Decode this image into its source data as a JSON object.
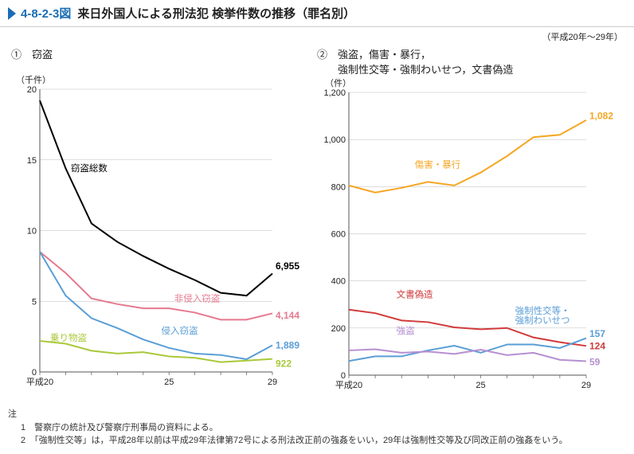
{
  "header": {
    "fig_num": "4-8-2-3図",
    "title": "来日外国人による刑法犯 検挙件数の推移（罪名別）",
    "range_note": "（平成20年～29年）"
  },
  "chart1": {
    "sub_label": "①　窃盗",
    "y_unit": "（千件）",
    "x_start_label": "平成20",
    "x_mid_label": "25",
    "x_end_label": "29",
    "y_ticks": [
      0,
      5,
      10,
      15,
      20
    ],
    "ylim": [
      0,
      20
    ],
    "xlim": [
      20,
      29
    ],
    "grid_color": "#bbbbbb",
    "axis_color": "#555555",
    "bg": "#ffffff",
    "series": [
      {
        "name": "total",
        "label": "窃盗総数",
        "label_x": 21.2,
        "label_y": 14.2,
        "color": "#000000",
        "end_label": "6,955",
        "end_y": 7.5,
        "data": [
          [
            20,
            19.2
          ],
          [
            21,
            14.4
          ],
          [
            22,
            10.5
          ],
          [
            23,
            9.2
          ],
          [
            24,
            8.2
          ],
          [
            25,
            7.3
          ],
          [
            26,
            6.5
          ],
          [
            27,
            5.6
          ],
          [
            28,
            5.4
          ],
          [
            29,
            6.955
          ]
        ]
      },
      {
        "name": "nonintr",
        "label": "非侵入窃盗",
        "label_x": 25.2,
        "label_y": 5.0,
        "color": "#e57a8f",
        "end_label": "4,144",
        "end_y": 4.0,
        "data": [
          [
            20,
            8.5
          ],
          [
            21,
            7.0
          ],
          [
            22,
            5.2
          ],
          [
            23,
            4.8
          ],
          [
            24,
            4.5
          ],
          [
            25,
            4.5
          ],
          [
            26,
            4.2
          ],
          [
            27,
            3.7
          ],
          [
            28,
            3.7
          ],
          [
            29,
            4.144
          ]
        ]
      },
      {
        "name": "intr",
        "label": "侵入窃盗",
        "label_x": 24.7,
        "label_y": 2.7,
        "color": "#5a9ed6",
        "end_label": "1,889",
        "end_y": 1.9,
        "data": [
          [
            20,
            8.5
          ],
          [
            21,
            5.4
          ],
          [
            22,
            3.8
          ],
          [
            23,
            3.1
          ],
          [
            24,
            2.3
          ],
          [
            25,
            1.7
          ],
          [
            26,
            1.3
          ],
          [
            27,
            1.2
          ],
          [
            28,
            0.9
          ],
          [
            29,
            1.889
          ]
        ]
      },
      {
        "name": "ride",
        "label": "乗り物盗",
        "label_x": 20.4,
        "label_y": 2.2,
        "color": "#a9c93b",
        "end_label": "922",
        "end_y": 0.6,
        "data": [
          [
            20,
            2.2
          ],
          [
            21,
            2.0
          ],
          [
            22,
            1.5
          ],
          [
            23,
            1.3
          ],
          [
            24,
            1.4
          ],
          [
            25,
            1.1
          ],
          [
            26,
            1.0
          ],
          [
            27,
            0.7
          ],
          [
            28,
            0.8
          ],
          [
            29,
            0.922
          ]
        ]
      }
    ]
  },
  "chart2": {
    "sub_label": "②　強盗，傷害・暴行，\n　　強制性交等・強制わいせつ，文書偽造",
    "y_unit": "（件）",
    "x_start_label": "平成20",
    "x_mid_label": "25",
    "x_end_label": "29",
    "y_ticks": [
      0,
      200,
      400,
      600,
      800,
      1000,
      1200
    ],
    "y_tick_labels": [
      "0",
      "200",
      "400",
      "600",
      "800",
      "1,000",
      "1,200"
    ],
    "ylim": [
      0,
      1200
    ],
    "xlim": [
      20,
      29
    ],
    "grid_color": "#bbbbbb",
    "axis_color": "#555555",
    "bg": "#ffffff",
    "series": [
      {
        "name": "injury",
        "label": "傷害・暴行",
        "label_x": 22.5,
        "label_y": 880,
        "color": "#f5a623",
        "end_label": "1,082",
        "end_y": 1100,
        "data": [
          [
            20,
            805
          ],
          [
            21,
            775
          ],
          [
            22,
            795
          ],
          [
            23,
            820
          ],
          [
            24,
            805
          ],
          [
            25,
            860
          ],
          [
            26,
            930
          ],
          [
            27,
            1010
          ],
          [
            28,
            1020
          ],
          [
            29,
            1082
          ]
        ]
      },
      {
        "name": "forgery",
        "label": "文書偽造",
        "label_x": 21.8,
        "label_y": 330,
        "color": "#d13a3a",
        "end_label": "124",
        "end_y": 124,
        "data": [
          [
            20,
            278
          ],
          [
            21,
            263
          ],
          [
            22,
            232
          ],
          [
            23,
            225
          ],
          [
            24,
            203
          ],
          [
            25,
            195
          ],
          [
            26,
            200
          ],
          [
            27,
            160
          ],
          [
            28,
            140
          ],
          [
            29,
            124
          ]
        ]
      },
      {
        "name": "sexual",
        "label": "強制性交等・\n強制わいせつ",
        "label_x": 26.3,
        "label_y": 260,
        "color": "#5a9ed6",
        "end_label": "157",
        "end_y": 175,
        "data": [
          [
            20,
            60
          ],
          [
            21,
            80
          ],
          [
            22,
            80
          ],
          [
            23,
            105
          ],
          [
            24,
            125
          ],
          [
            25,
            95
          ],
          [
            26,
            130
          ],
          [
            27,
            130
          ],
          [
            28,
            115
          ],
          [
            29,
            157
          ]
        ]
      },
      {
        "name": "robbery",
        "label": "強盗",
        "label_x": 21.8,
        "label_y": 175,
        "color": "#b68fd1",
        "end_label": "59",
        "end_y": 55,
        "data": [
          [
            20,
            105
          ],
          [
            21,
            110
          ],
          [
            22,
            95
          ],
          [
            23,
            100
          ],
          [
            24,
            90
          ],
          [
            25,
            108
          ],
          [
            26,
            85
          ],
          [
            27,
            95
          ],
          [
            28,
            65
          ],
          [
            29,
            59
          ]
        ]
      }
    ]
  },
  "notes": {
    "prefix": "注",
    "items": [
      "1　警察庁の統計及び警察庁刑事局の資料による。",
      "2　「強制性交等」は，平成28年以前は平成29年法律第72号による刑法改正前の強姦をいい，29年は強制性交等及び同改正前の強姦をいう。"
    ]
  }
}
